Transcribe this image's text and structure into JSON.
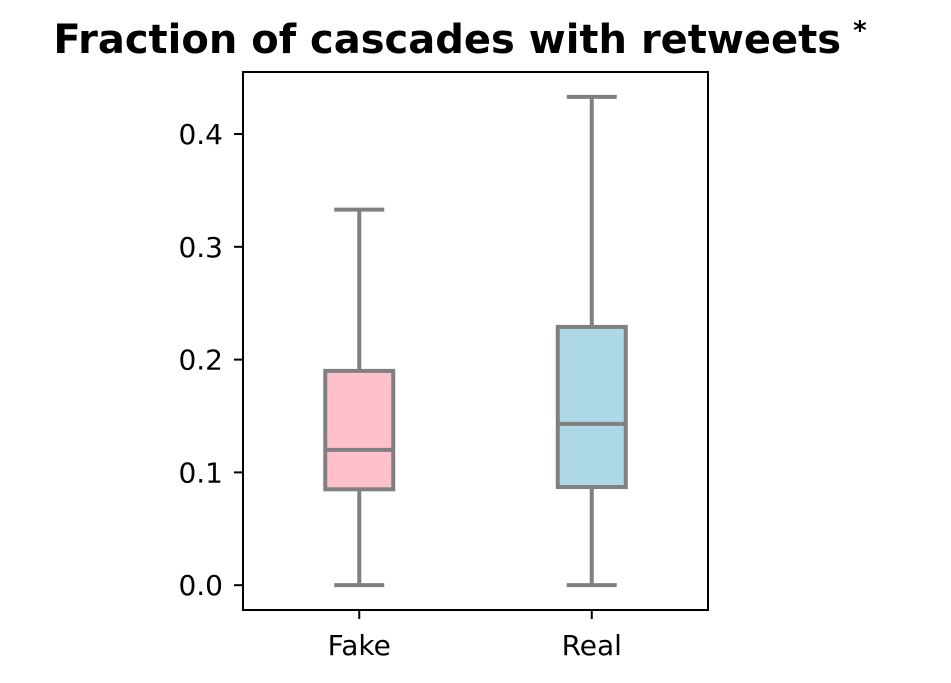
{
  "chart_data": {
    "type": "box",
    "title": "Fraction of cascades with retweets",
    "significance_marker": "*",
    "xlabel": "",
    "ylabel": "",
    "categories": [
      "Fake",
      "Real"
    ],
    "ylim": [
      -0.022,
      0.455
    ],
    "yticks": [
      0.0,
      0.1,
      0.2,
      0.3,
      0.4
    ],
    "ytick_labels": [
      "0.0",
      "0.1",
      "0.2",
      "0.3",
      "0.4"
    ],
    "grid": false,
    "legend": false,
    "series": [
      {
        "category": "Fake",
        "whisker_low": 0.0,
        "q1": 0.085,
        "median": 0.12,
        "q3": 0.19,
        "whisker_high": 0.333,
        "fill": "#ffc0cb"
      },
      {
        "category": "Real",
        "whisker_low": 0.0,
        "q1": 0.087,
        "median": 0.143,
        "q3": 0.229,
        "whisker_high": 0.433,
        "fill": "#add8e6"
      }
    ],
    "line_color": "#808080"
  }
}
